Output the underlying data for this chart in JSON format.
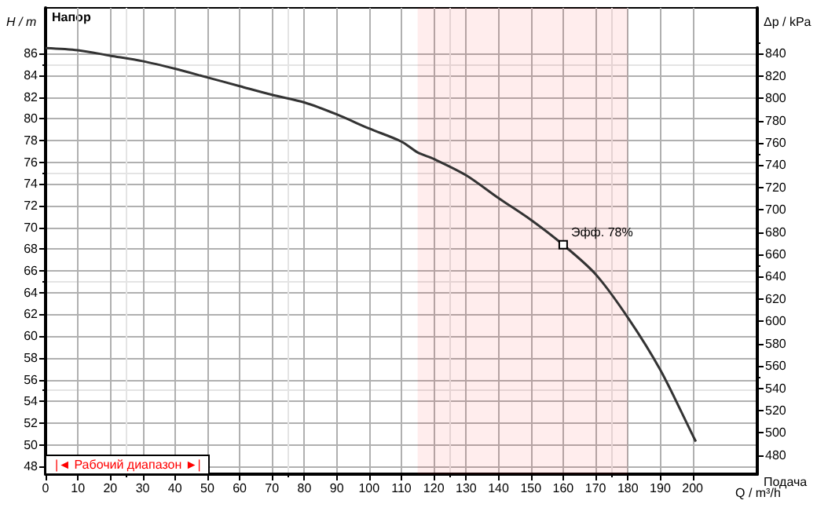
{
  "chart_data": {
    "type": "line",
    "x": [
      0,
      10,
      20,
      30,
      40,
      50,
      60,
      70,
      80,
      90,
      100,
      110,
      115,
      120,
      130,
      140,
      150,
      160,
      170,
      180,
      190,
      200,
      201
    ],
    "series": [
      {
        "color": "#333333",
        "values": [
          86.5,
          86.3,
          85.8,
          85.3,
          84.6,
          83.8,
          83.0,
          82.2,
          81.5,
          80.4,
          79.1,
          77.9,
          76.9,
          76.3,
          74.8,
          72.7,
          70.7,
          68.4,
          65.7,
          61.7,
          56.9,
          50.9,
          50.3
        ]
      }
    ],
    "xlabel": "Q / m³/h",
    "ylabel": "H / m",
    "y2label": "Δp / kPa",
    "xlim": [
      0,
      220
    ],
    "xticks": [
      0,
      10,
      20,
      30,
      40,
      50,
      60,
      70,
      80,
      90,
      100,
      110,
      120,
      130,
      140,
      150,
      160,
      170,
      180,
      190,
      200
    ],
    "ylim": [
      47.3,
      90.2
    ],
    "yticks": [
      48,
      50,
      52,
      54,
      56,
      58,
      60,
      62,
      64,
      66,
      68,
      70,
      72,
      74,
      76,
      78,
      80,
      82,
      84,
      86
    ],
    "y2lim": [
      463,
      881
    ],
    "y2ticks": [
      480,
      500,
      520,
      540,
      560,
      580,
      600,
      620,
      640,
      660,
      680,
      700,
      720,
      740,
      760,
      780,
      800,
      820,
      840
    ],
    "annotations": [
      "Напор",
      {
        "text": "Эфф. 78%",
        "x": 160,
        "y": 68.4
      },
      "Подача"
    ],
    "bands": [
      {
        "axis": "x",
        "from": 115,
        "to": 180,
        "label": "|◄ Рабочий диапазон ►|",
        "color": "#ff0000"
      }
    ],
    "grid": true,
    "marker": "none",
    "line_style": "solid"
  }
}
